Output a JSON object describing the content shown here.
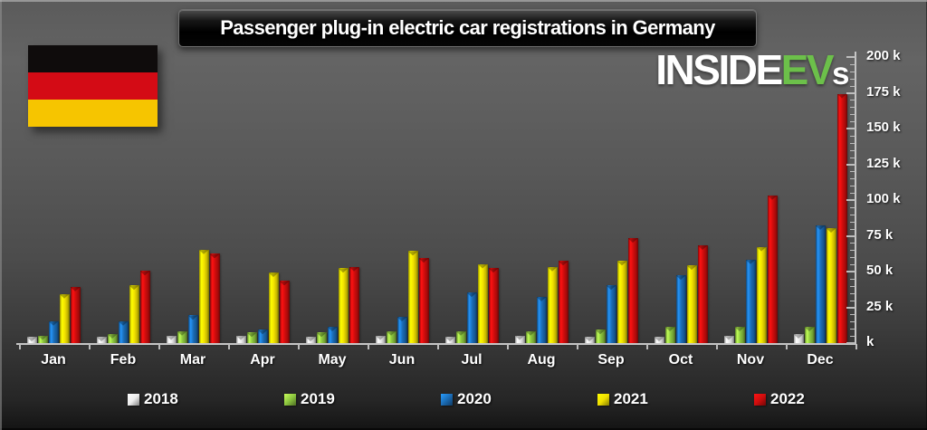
{
  "title": {
    "text": "Passenger plug-in electric car registrations in Germany"
  },
  "logo": {
    "part_white_1": "INSIDE",
    "part_green": "EV",
    "part_white_2": "s",
    "green_color": "#6cc04a",
    "white_color": "#ffffff"
  },
  "flag": {
    "country": "Germany",
    "stripe_colors": [
      "#0f0c0c",
      "#d40b15",
      "#f6c500"
    ]
  },
  "chart_data": {
    "type": "bar",
    "title": "Passenger plug-in electric car registrations in Germany",
    "unit": "thousand registrations",
    "categories": [
      "Jan",
      "Feb",
      "Mar",
      "Apr",
      "May",
      "Jun",
      "Jul",
      "Aug",
      "Sep",
      "Oct",
      "Nov",
      "Dec"
    ],
    "series": [
      {
        "name": "2018",
        "color": "#ececec",
        "values": [
          5,
          5,
          6,
          6,
          5,
          6,
          5,
          6,
          5,
          5,
          6,
          7
        ]
      },
      {
        "name": "2019",
        "color": "#8cc63f",
        "values": [
          6,
          7,
          9,
          8,
          8,
          9,
          9,
          9,
          10,
          12,
          12,
          12
        ]
      },
      {
        "name": "2020",
        "color": "#1b6cb5",
        "values": [
          16,
          16,
          20,
          10,
          12,
          19,
          36,
          33,
          41,
          48,
          59,
          83
        ]
      },
      {
        "name": "2021",
        "color": "#f0e000",
        "values": [
          35,
          41,
          66,
          50,
          53,
          65,
          56,
          54,
          58,
          55,
          68,
          81
        ]
      },
      {
        "name": "2022",
        "color": "#cf0d0d",
        "values": [
          40,
          51,
          63,
          44,
          54,
          60,
          53,
          58,
          74,
          69,
          104,
          175
        ]
      }
    ],
    "ylim": [
      0,
      200
    ],
    "y_tick_labels_bottom_to_top": [
      "k",
      "25 k",
      "50 k",
      "75 k",
      "100 k",
      "125 k",
      "150 k",
      "175 k",
      "200 k"
    ],
    "y_minor_tick_step_k": 5,
    "xlabel": "",
    "ylabel": "",
    "grid": false,
    "legend_position": "bottom",
    "y_axis_side": "right"
  }
}
